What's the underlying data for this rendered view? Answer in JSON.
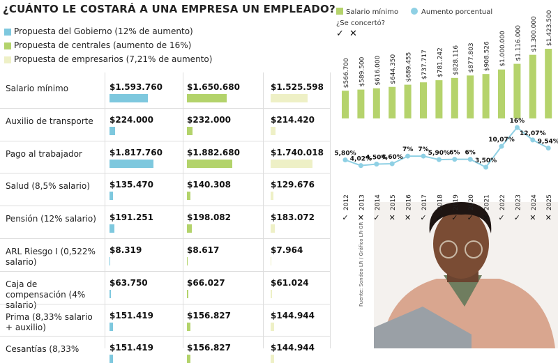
{
  "header": {
    "title": "¿CUÁNTO LE COSTARÁ A UNA EMPRESA UN EMPLEADO?"
  },
  "legend": [
    {
      "label": "Propuesta del Gobierno (12% de aumento)",
      "color": "#7ec8de"
    },
    {
      "label": "Propuesta de centrales (aumento de 16%)",
      "color": "#b3d36b"
    },
    {
      "label": "Propuesta de empresarios (7,21% de aumento)",
      "color": "#eef0c6"
    }
  ],
  "table": {
    "rows": [
      {
        "label": "Salario mínimo",
        "values": [
          1593760,
          1650680,
          1525598
        ],
        "value_labels": [
          "$1.593.760",
          "$1.650.680",
          "$1.525.598"
        ]
      },
      {
        "label": "Auxilio de transporte",
        "values": [
          224000,
          232000,
          214420
        ],
        "value_labels": [
          "$224.000",
          "$232.000",
          "$214.420"
        ]
      },
      {
        "label": "Pago al trabajador",
        "values": [
          1817760,
          1882680,
          1740018
        ],
        "value_labels": [
          "$1.817.760",
          "$1.882.680",
          "$1.740.018"
        ]
      },
      {
        "label": "Salud (8,5% salario)",
        "values": [
          135470,
          140308,
          129676
        ],
        "value_labels": [
          "$135.470",
          "$140.308",
          "$129.676"
        ]
      },
      {
        "label": "Pensión (12% salario)",
        "values": [
          191251,
          198082,
          183072
        ],
        "value_labels": [
          "$191.251",
          "$198.082",
          "$183.072"
        ]
      },
      {
        "label": "ARL Riesgo I (0,522% salario)",
        "values": [
          8319,
          8617,
          7964
        ],
        "value_labels": [
          "$8.319",
          "$8.617",
          "$7.964"
        ]
      },
      {
        "label": "Caja de compensación (4% salario)",
        "values": [
          63750,
          66027,
          61024
        ],
        "value_labels": [
          "$63.750",
          "$66.027",
          "$61.024"
        ]
      },
      {
        "label": "Prima (8,33% salario + auxilio)",
        "values": [
          151419,
          156827,
          144944
        ],
        "value_labels": [
          "$151.419",
          "$156.827",
          "$144.944"
        ]
      },
      {
        "label": "Cesantías (8,33%",
        "values": [
          151419,
          156827,
          144944
        ],
        "value_labels": [
          "$151.419",
          "$156.827",
          "$144.944"
        ]
      }
    ]
  },
  "chart_data": {
    "type": "combo",
    "categories": [
      "2012",
      "2013",
      "2014",
      "2015",
      "2016",
      "2017",
      "2018",
      "2019",
      "2020",
      "2021",
      "2022",
      "2023",
      "2024",
      "2025"
    ],
    "series": [
      {
        "name": "Salario mínimo",
        "color": "#b5d36c",
        "mark": "bar",
        "values": [
          566700,
          589500,
          616000,
          644350,
          689455,
          737717,
          781242,
          828116,
          877803,
          908526,
          1000000,
          1116000,
          1300000,
          1423500
        ],
        "value_labels": [
          "$566.700",
          "$589.500",
          "$616.000",
          "$644.350",
          "$689.455",
          "$737.717",
          "$781.242",
          "$828.116",
          "$877.803",
          "$908.526",
          "$1.000.000",
          "$1.116.000",
          "$1.300.000",
          "$1.423.500"
        ]
      },
      {
        "name": "Aumento porcentual",
        "color": "#8fd0e4",
        "mark": "line",
        "values": [
          5.8,
          4.02,
          4.5,
          4.6,
          7,
          7,
          5.9,
          6,
          6,
          3.5,
          10.07,
          16,
          12.07,
          9.54
        ],
        "value_labels": [
          "5,80%",
          "4,02%",
          "4,50%",
          "4,60%",
          "7%",
          "7%",
          "5,90%",
          "6%",
          "6%",
          "3,50%",
          "10,07%",
          "16%",
          "12,07%",
          "9,54%"
        ]
      }
    ],
    "concerted_label": "¿Se concertó?",
    "concerted_legend": [
      "✓",
      "✕"
    ],
    "concerted": [
      "✓",
      "✕",
      "✓",
      "✕",
      "✕",
      "✓",
      "✓",
      "✓",
      "✓",
      "✕",
      "✓",
      "✓",
      "✕",
      "✕"
    ]
  },
  "source": "Fuente: Sondeo LR / Gráfico LR-GR"
}
